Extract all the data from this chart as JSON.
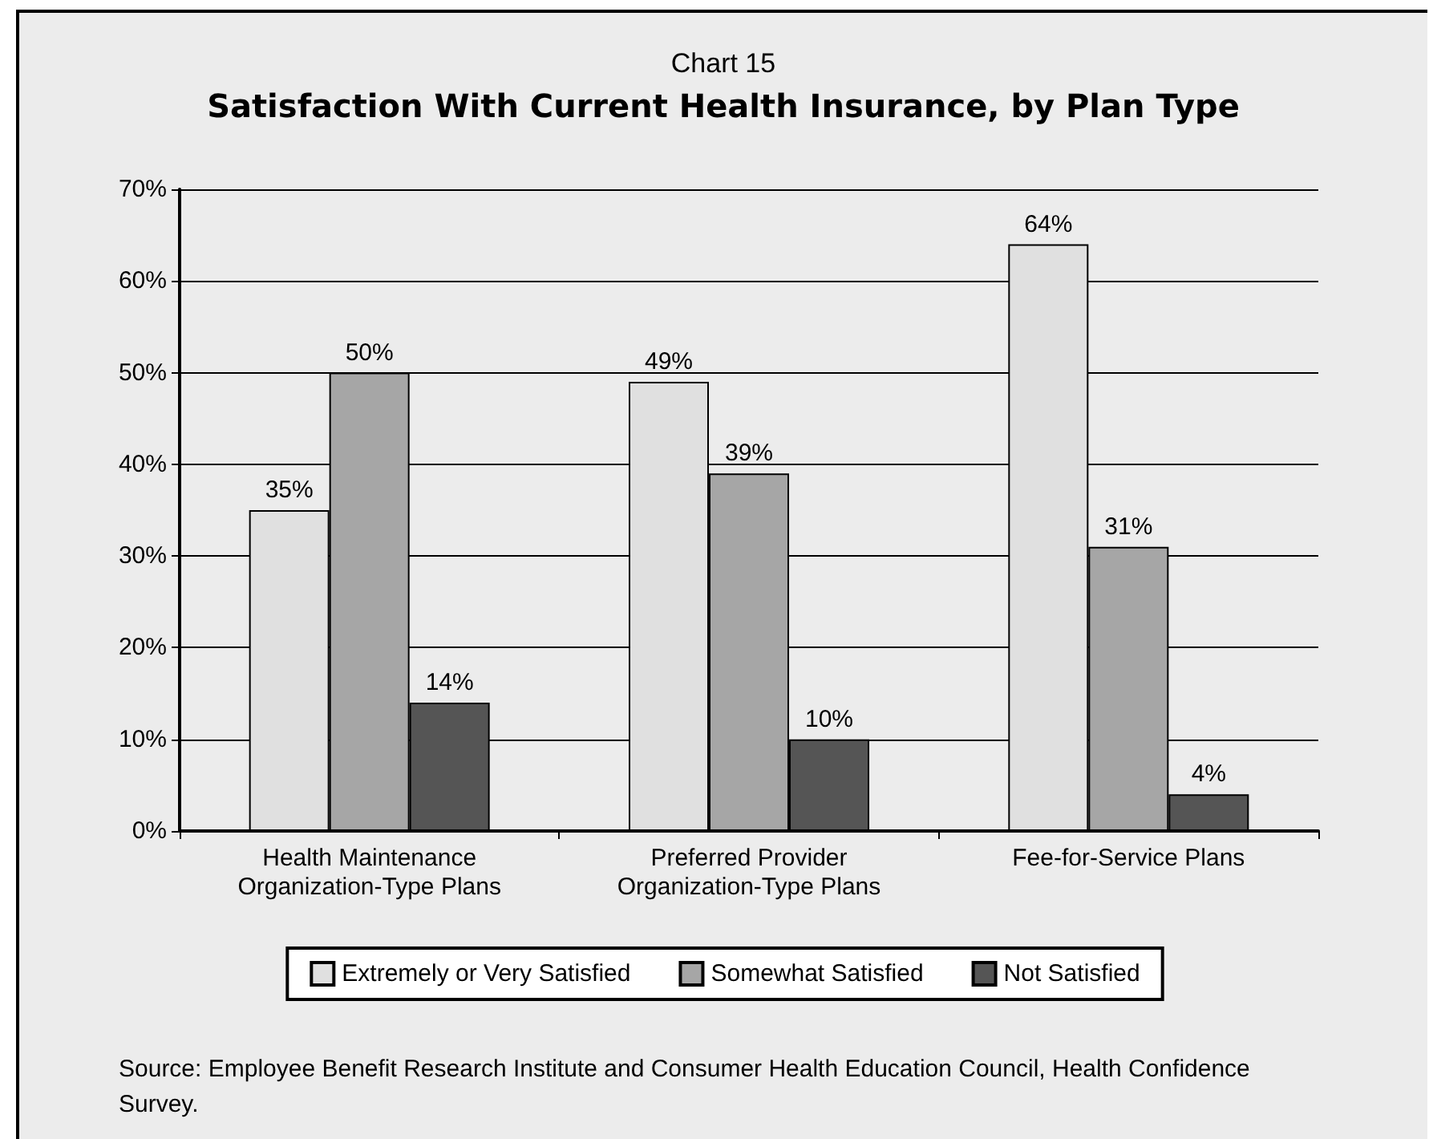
{
  "chart_data": {
    "type": "bar",
    "subtitle": "Chart 15",
    "title": "Satisfaction With Current Health Insurance, by Plan Type",
    "categories": [
      "Health Maintenance\nOrganization-Type Plans",
      "Preferred Provider\nOrganization-Type Plans",
      "Fee-for-Service Plans"
    ],
    "series": [
      {
        "name": "Extremely or Very Satisfied",
        "color": "#e0e0e0",
        "values": [
          35,
          49,
          64
        ],
        "value_labels": [
          "35%",
          "49%",
          "64%"
        ]
      },
      {
        "name": "Somewhat Satisfied",
        "color": "#a6a6a6",
        "values": [
          50,
          39,
          31
        ],
        "value_labels": [
          "50%",
          "39%",
          "31%"
        ]
      },
      {
        "name": "Not Satisfied",
        "color": "#555555",
        "values": [
          14,
          10,
          4
        ],
        "value_labels": [
          "14%",
          "10%",
          "4%"
        ]
      }
    ],
    "ylim": [
      0,
      70
    ],
    "yticks": [
      {
        "value": 0,
        "label": "0%"
      },
      {
        "value": 10,
        "label": "10%"
      },
      {
        "value": 20,
        "label": "20%"
      },
      {
        "value": 30,
        "label": "30%"
      },
      {
        "value": 40,
        "label": "40%"
      },
      {
        "value": 50,
        "label": "50%"
      },
      {
        "value": 60,
        "label": "60%"
      },
      {
        "value": 70,
        "label": "70%"
      }
    ],
    "grid": "y",
    "legend": "bottom",
    "annotations": [
      "Source: Employee Benefit Research Institute and Consumer Health Education Council, Health Confidence Survey."
    ]
  }
}
